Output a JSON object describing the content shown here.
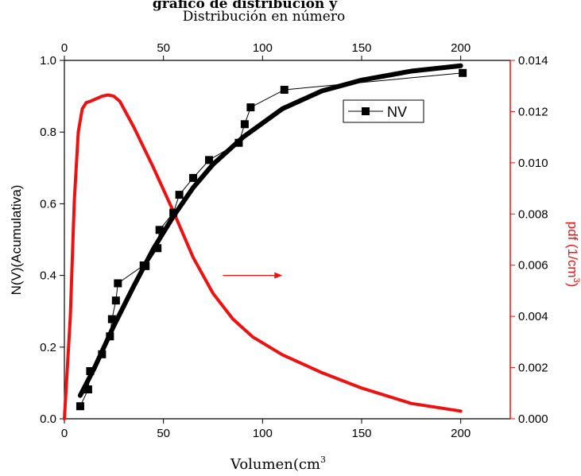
{
  "chart_data": {
    "type": "line",
    "title": "Distribución en número",
    "title_partial": "gráfico de distribución y",
    "xlabel_bottom": "Volumen(cm",
    "xlabel_bottom_sup": "3",
    "xlim": [
      0,
      225
    ],
    "x_ticks": [
      0,
      50,
      100,
      150,
      200
    ],
    "top_axis_ticks": [
      0,
      50,
      100,
      150,
      200
    ],
    "ylabel_left": "N(V)(Acumulativa)",
    "ylim_left": [
      0,
      1.0
    ],
    "y_ticks_left": [
      "0.0",
      "0.2",
      "0.4",
      "0.6",
      "0.8",
      "1.0"
    ],
    "ylabel_right": "pdf (1/cm",
    "ylabel_right_sup": "3",
    "ylabel_right_close": ")",
    "ylim_right": [
      0,
      0.014
    ],
    "y_ticks_right": [
      "0.000",
      "0.002",
      "0.004",
      "0.006",
      "0.008",
      "0.010",
      "0.012",
      "0.014"
    ],
    "legend": {
      "position": "top-right",
      "entries": [
        "NV"
      ]
    },
    "grid": false,
    "series": [
      {
        "name": "NV",
        "axis": "left",
        "style": "line+square-markers",
        "color": "#000000",
        "x": [
          8,
          12,
          13,
          19,
          23,
          24,
          26,
          27,
          40,
          41,
          47,
          48,
          55,
          58,
          65,
          73,
          88,
          91,
          94,
          111,
          201
        ],
        "y": [
          0.035,
          0.082,
          0.133,
          0.18,
          0.23,
          0.278,
          0.33,
          0.378,
          0.428,
          0.426,
          0.476,
          0.527,
          0.575,
          0.625,
          0.672,
          0.722,
          0.77,
          0.822,
          0.869,
          0.918,
          0.965
        ]
      },
      {
        "axis": "left",
        "style": "thick-fit-line",
        "color": "#000000",
        "x": [
          8,
          15,
          25,
          35,
          45,
          55,
          65,
          75,
          90,
          110,
          130,
          150,
          175,
          200
        ],
        "y": [
          0.065,
          0.14,
          0.26,
          0.37,
          0.475,
          0.565,
          0.645,
          0.71,
          0.785,
          0.865,
          0.915,
          0.945,
          0.97,
          0.985
        ]
      },
      {
        "axis": "right",
        "style": "thick-line",
        "color": "#ee1111",
        "x": [
          0,
          3,
          5,
          7,
          9,
          11,
          13,
          16,
          19,
          22,
          25,
          28,
          35,
          45,
          55,
          65,
          75,
          85,
          95,
          110,
          130,
          150,
          175,
          200
        ],
        "y": [
          0.0,
          0.004,
          0.0085,
          0.0112,
          0.0121,
          0.01235,
          0.0124,
          0.0125,
          0.0126,
          0.01265,
          0.0126,
          0.0124,
          0.0114,
          0.0098,
          0.0081,
          0.0063,
          0.0049,
          0.0039,
          0.0032,
          0.0025,
          0.0018,
          0.0012,
          0.0006,
          0.0003
        ]
      }
    ],
    "annotations": [
      {
        "type": "arrow",
        "color": "#ee1111",
        "from": [
          80,
          0.4
        ],
        "to": [
          110,
          0.4
        ]
      }
    ],
    "colors": {
      "axis": "#000000",
      "right_axis": "#ee1111",
      "series_nv": "#000000",
      "series_pdf": "#ee1111"
    }
  }
}
